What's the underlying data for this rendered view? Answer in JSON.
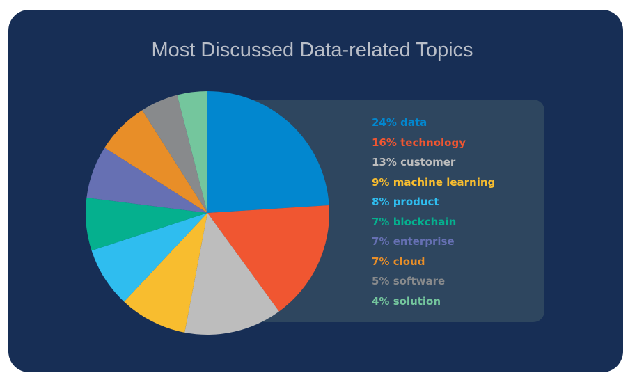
{
  "chart_data": {
    "type": "pie",
    "title": "Most Discussed Data-related Topics",
    "legend_placement": "right",
    "slices": [
      {
        "label": "24% data",
        "value": 24,
        "color": "#0287cf"
      },
      {
        "label": "16% technology",
        "value": 16,
        "color": "#f05631"
      },
      {
        "label": "13% customer",
        "value": 13,
        "color": "#bdbdbd"
      },
      {
        "label": "9% machine learning",
        "value": 9,
        "color": "#f8bd2f"
      },
      {
        "label": "8% product",
        "value": 8,
        "color": "#2fbdef"
      },
      {
        "label": "7% blockchain",
        "value": 7,
        "color": "#05b08e"
      },
      {
        "label": "7% enterprise",
        "value": 7,
        "color": "#6670b3"
      },
      {
        "label": "7% cloud",
        "value": 7,
        "color": "#e88e28"
      },
      {
        "label": "5% software",
        "value": 5,
        "color": "#888a8c"
      },
      {
        "label": "4% solution",
        "value": 4,
        "color": "#74c69d"
      }
    ]
  }
}
